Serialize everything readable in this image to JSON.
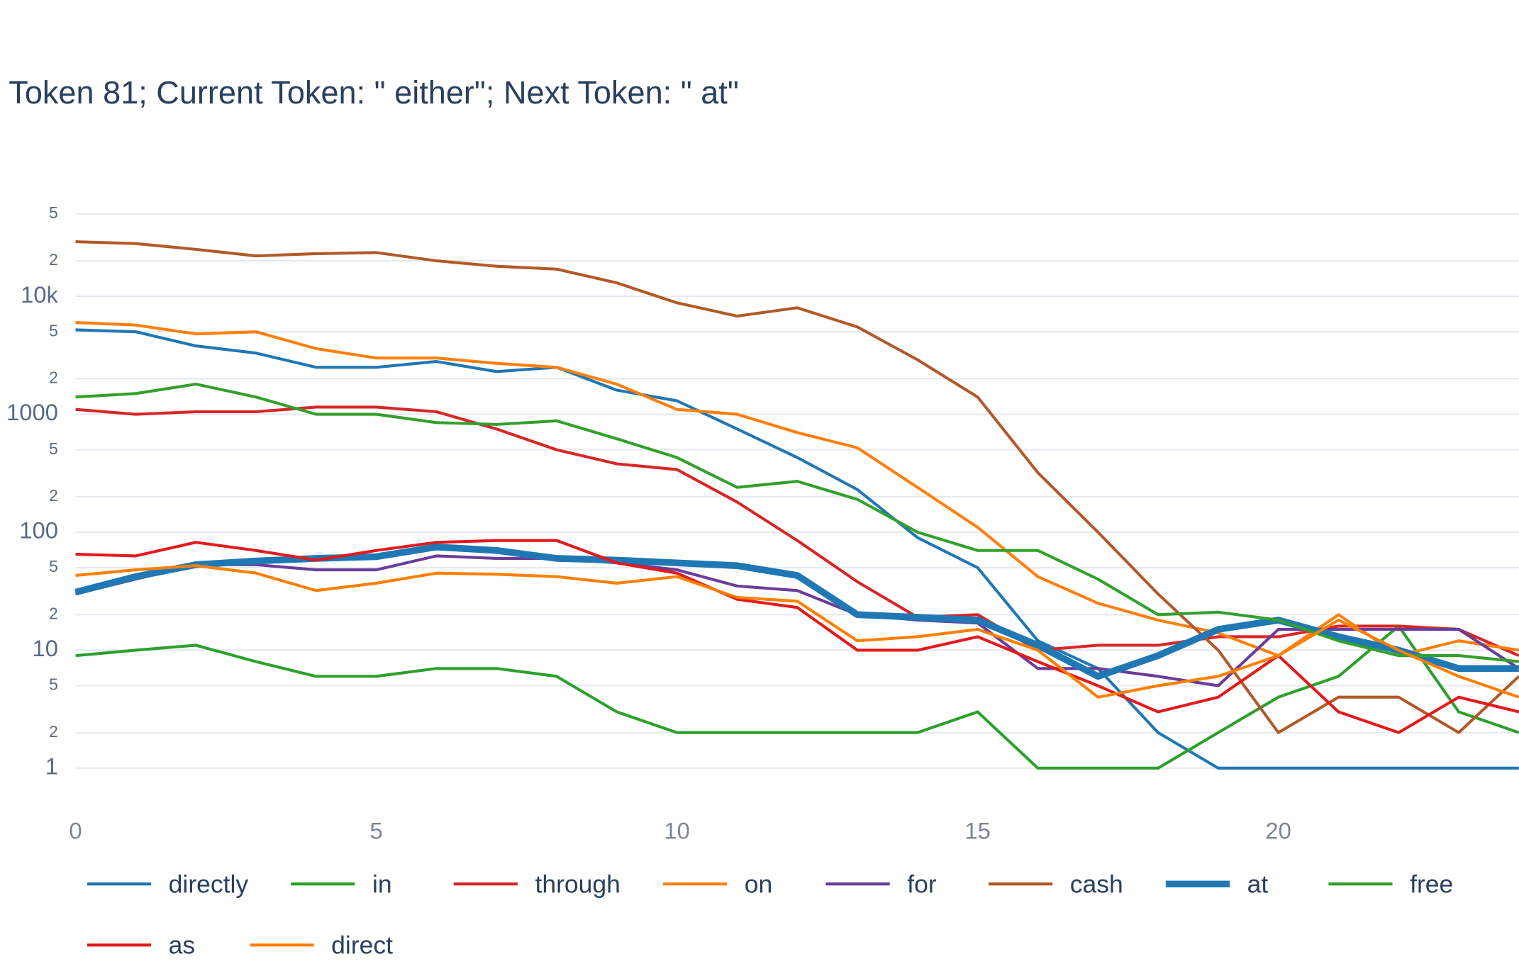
{
  "chart_data": {
    "type": "line",
    "title": "Token 81; Current Token: \" either\"; Next Token: \" at\"",
    "log_y": true,
    "grid": true,
    "x": [
      0,
      1,
      2,
      3,
      4,
      5,
      6,
      7,
      8,
      9,
      10,
      11,
      12,
      13,
      14,
      15,
      16,
      17,
      18,
      19,
      20,
      21,
      22,
      23,
      24
    ],
    "xlim": [
      0,
      24
    ],
    "xticks": [
      0,
      5,
      10,
      15,
      20
    ],
    "ylim": [
      0.5,
      70000
    ],
    "yticks": [
      1,
      2,
      5,
      10,
      {
        "value": 20,
        "label": "2"
      },
      {
        "value": 50,
        "label": "5"
      },
      100,
      {
        "value": 200,
        "label": "2"
      },
      {
        "value": 500,
        "label": "5"
      },
      1000,
      {
        "value": 2000,
        "label": "2"
      },
      {
        "value": 5000,
        "label": "5"
      },
      {
        "value": 10000,
        "label": "10k"
      },
      {
        "value": 20000,
        "label": "2"
      },
      {
        "value": 50000,
        "label": "5"
      }
    ],
    "series": [
      {
        "name": "directly",
        "color": "#1f77b4",
        "width": 3,
        "values": [
          5200,
          5000,
          3800,
          3300,
          2500,
          2500,
          2800,
          2300,
          2500,
          1600,
          1300,
          750,
          430,
          230,
          90,
          50,
          12,
          7,
          2,
          1,
          1,
          1,
          1,
          1,
          1
        ]
      },
      {
        "name": "in",
        "color": "#2ca02c",
        "width": 3,
        "values": [
          9,
          10,
          11,
          8,
          6,
          6,
          7,
          7,
          6,
          3,
          2,
          2,
          2,
          2,
          2,
          3,
          1,
          1,
          1,
          2,
          4,
          6,
          16,
          3,
          2
        ]
      },
      {
        "name": "through",
        "color": "#d62728",
        "width": 3,
        "values": [
          1100,
          1000,
          1050,
          1050,
          1150,
          1150,
          1050,
          750,
          500,
          380,
          340,
          180,
          85,
          38,
          19,
          20,
          10,
          11,
          11,
          13,
          13,
          16,
          16,
          15,
          9
        ]
      },
      {
        "name": "on",
        "color": "#ff7f0e",
        "width": 3,
        "values": [
          6000,
          5700,
          4800,
          5000,
          3600,
          3000,
          3000,
          2700,
          2500,
          1800,
          1100,
          1000,
          700,
          520,
          240,
          110,
          42,
          25,
          18,
          14,
          9,
          20,
          9,
          12,
          10
        ]
      },
      {
        "name": "for",
        "color": "#6a3d9a",
        "width": 3,
        "values": [
          30,
          40,
          53,
          53,
          48,
          48,
          63,
          60,
          60,
          55,
          48,
          35,
          32,
          20,
          18,
          17,
          7,
          7,
          6,
          5,
          15,
          15,
          15,
          15,
          7
        ]
      },
      {
        "name": "cash",
        "color": "#b15928",
        "width": 3,
        "values": [
          29000,
          28000,
          25000,
          22000,
          23000,
          23500,
          20000,
          18000,
          17000,
          13000,
          8800,
          6800,
          8000,
          5500,
          2900,
          1400,
          320,
          100,
          30,
          10,
          2,
          4,
          4,
          2,
          6
        ]
      },
      {
        "name": "at",
        "color": "#1f78b4",
        "width": 7,
        "values": [
          31,
          42,
          53,
          57,
          60,
          62,
          75,
          70,
          60,
          58,
          55,
          52,
          43,
          20,
          19,
          18,
          11,
          6,
          9,
          15,
          18,
          13,
          10,
          7,
          7
        ]
      },
      {
        "name": "free",
        "color": "#33a02c",
        "width": 3,
        "values": [
          1400,
          1500,
          1800,
          1400,
          1000,
          1000,
          850,
          820,
          880,
          620,
          430,
          240,
          270,
          190,
          100,
          70,
          70,
          40,
          20,
          21,
          18,
          12,
          9,
          9,
          8
        ]
      },
      {
        "name": "as",
        "color": "#e31a1c",
        "width": 3,
        "values": [
          65,
          63,
          82,
          70,
          58,
          70,
          82,
          85,
          85,
          55,
          45,
          27,
          23,
          10,
          10,
          13,
          8,
          5,
          3,
          4,
          9,
          3,
          2,
          4,
          3
        ]
      },
      {
        "name": "direct",
        "color": "#ff7f00",
        "width": 3,
        "values": [
          43,
          48,
          52,
          45,
          32,
          37,
          45,
          44,
          42,
          37,
          42,
          28,
          26,
          12,
          13,
          15,
          10,
          4,
          5,
          6,
          9,
          18,
          10,
          6,
          4
        ]
      }
    ]
  }
}
